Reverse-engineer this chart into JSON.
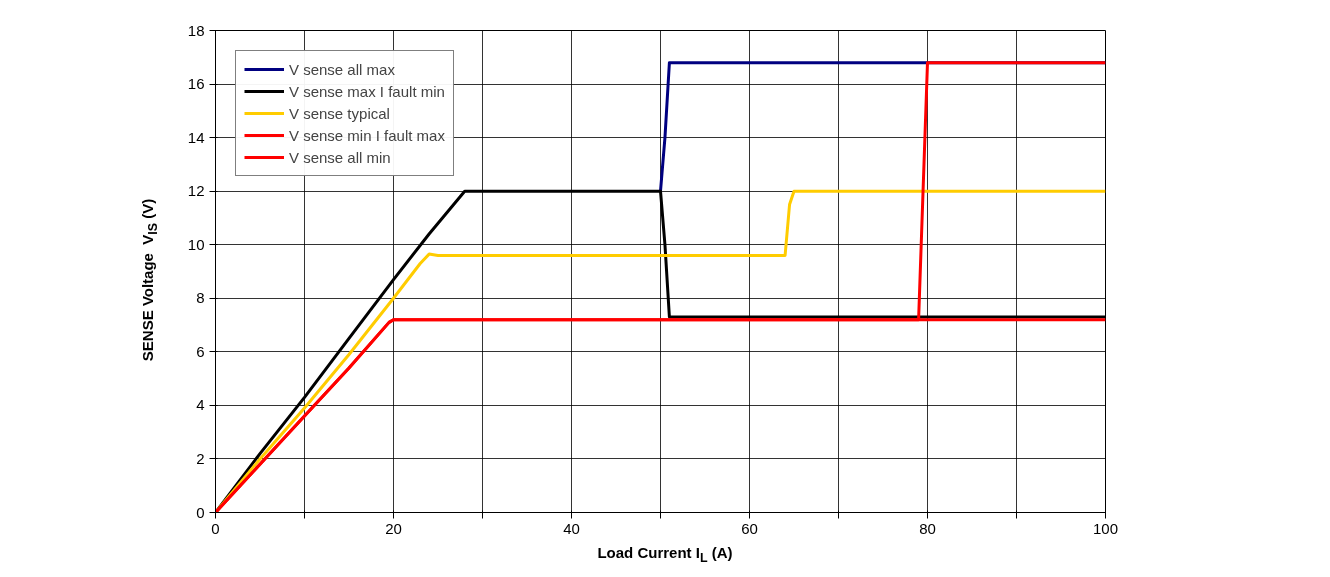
{
  "chart_data": {
    "type": "line",
    "xlabel": "Load Current I$_{L}$ (A)",
    "ylabel": "SENSE Voltage  V$_{IS}$ (V)",
    "xlim": [
      0,
      100
    ],
    "ylim": [
      0,
      18
    ],
    "xticks": [
      0,
      {
        "value": 10,
        "label": null
      },
      20,
      {
        "value": 30,
        "label": null
      },
      40,
      {
        "value": 50,
        "label": null
      },
      60,
      {
        "value": 70,
        "label": null
      },
      80,
      {
        "value": 90,
        "label": null
      },
      100
    ],
    "yticks": [
      0,
      2,
      4,
      6,
      8,
      10,
      12,
      14,
      16,
      18
    ],
    "grid": true,
    "legend": "top left",
    "line_style": "solid",
    "marker": "none",
    "series": [
      {
        "name": "V sense all max",
        "color": "#000080",
        "x": [
          50,
          50.5,
          51,
          100
        ],
        "values": [
          12,
          14,
          16.8,
          16.8
        ]
      },
      {
        "name": "V sense max I fault min",
        "color": "#000000",
        "x": [
          0,
          5,
          10,
          15,
          20,
          24,
          28,
          50,
          50.5,
          51,
          100
        ],
        "values": [
          0,
          2.2,
          4.3,
          6.5,
          8.7,
          10.4,
          12,
          12,
          10,
          7.3,
          7.3
        ]
      },
      {
        "name": "V sense typical",
        "color": "#ffcc00",
        "x": [
          0,
          5,
          10,
          15,
          20,
          23,
          24,
          25,
          63.5,
          64,
          64.5,
          65,
          100
        ],
        "values": [
          0,
          2.0,
          3.9,
          5.9,
          8.0,
          9.3,
          9.65,
          9.6,
          9.6,
          9.6,
          11.5,
          12,
          12
        ]
      },
      {
        "name": "V sense min I fault max",
        "color": "#ff0000",
        "x": [
          0,
          5,
          10,
          15,
          19.5,
          20,
          79,
          79.5,
          80,
          100
        ],
        "values": [
          0,
          1.8,
          3.6,
          5.4,
          7.1,
          7.2,
          7.2,
          12,
          16.8,
          16.8
        ]
      },
      {
        "name": "V sense all min",
        "color": "#ff0000",
        "x": [
          0,
          5,
          10,
          15,
          19.5,
          20,
          100
        ],
        "values": [
          0,
          1.8,
          3.6,
          5.4,
          7.1,
          7.2,
          7.2
        ]
      }
    ]
  }
}
